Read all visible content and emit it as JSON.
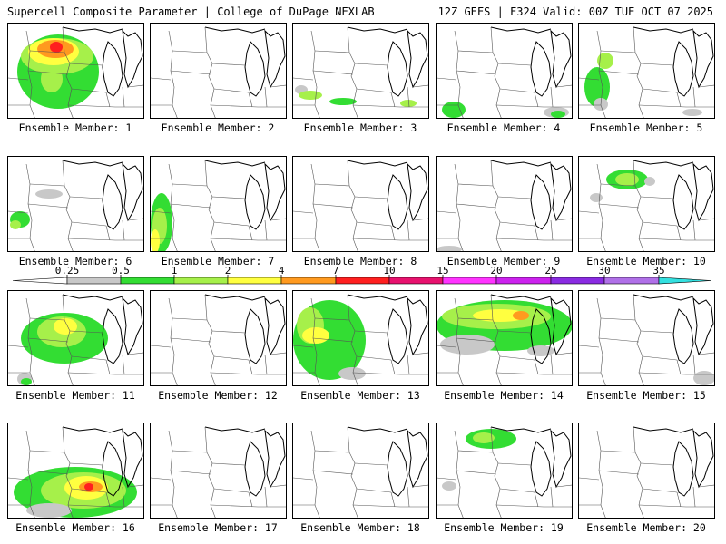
{
  "header": {
    "left_title": "Supercell Composite Parameter | College of DuPage NEXLAB",
    "right_title": "12Z GEFS | F324 Valid: 00Z TUE OCT 07 2025"
  },
  "colorbar": {
    "ticks": [
      "0.25",
      "0.5",
      "1",
      "2",
      "4",
      "7",
      "10",
      "15",
      "20",
      "25",
      "30",
      "35"
    ],
    "colors": [
      "#c8c8c8",
      "#33dd33",
      "#a6f04a",
      "#ffff40",
      "#ff9a1f",
      "#ff1f1f",
      "#e8126e",
      "#ff33ff",
      "#cc22ee",
      "#8a2be2",
      "#b070e8",
      "#33e0e0"
    ]
  },
  "panels": [
    {
      "label": "Ensemble Member: 1"
    },
    {
      "label": "Ensemble Member: 2"
    },
    {
      "label": "Ensemble Member: 3"
    },
    {
      "label": "Ensemble Member: 4"
    },
    {
      "label": "Ensemble Member: 5"
    },
    {
      "label": "Ensemble Member: 6"
    },
    {
      "label": "Ensemble Member: 7"
    },
    {
      "label": "Ensemble Member: 8"
    },
    {
      "label": "Ensemble Member: 9"
    },
    {
      "label": "Ensemble Member: 10"
    },
    {
      "label": "Ensemble Member: 11"
    },
    {
      "label": "Ensemble Member: 12"
    },
    {
      "label": "Ensemble Member: 13"
    },
    {
      "label": "Ensemble Member: 14"
    },
    {
      "label": "Ensemble Member: 15"
    },
    {
      "label": "Ensemble Member: 16"
    },
    {
      "label": "Ensemble Member: 17"
    },
    {
      "label": "Ensemble Member: 18"
    },
    {
      "label": "Ensemble Member: 19"
    },
    {
      "label": "Ensemble Member: 20"
    }
  ]
}
